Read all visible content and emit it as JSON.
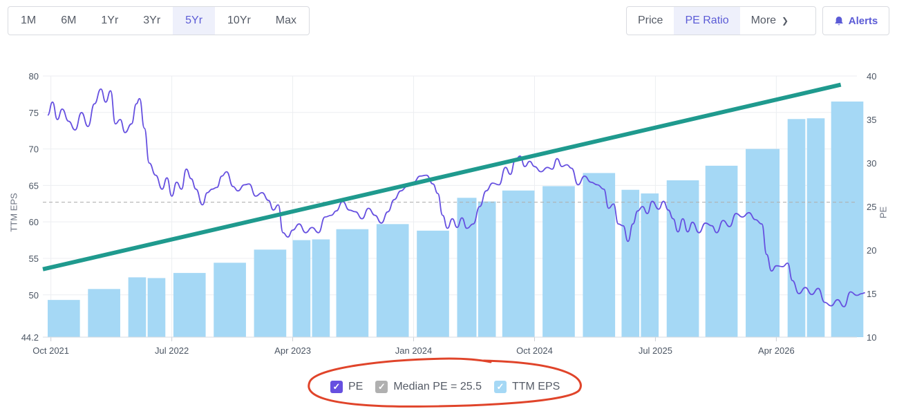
{
  "range_buttons": [
    "1M",
    "6M",
    "1Yr",
    "3Yr",
    "5Yr",
    "10Yr",
    "Max"
  ],
  "active_range": "5Yr",
  "view_buttons": {
    "price": "Price",
    "pe_ratio": "PE Ratio",
    "more": "More"
  },
  "active_view": "PE Ratio",
  "alerts_label": "Alerts",
  "legend": {
    "pe": "PE",
    "median": "Median PE = 25.5",
    "eps": "TTM EPS"
  },
  "colors": {
    "accent": "#5b5bd6",
    "pe_line": "#6650e0",
    "eps_bar": "#a5d8f5",
    "trend_line": "#1f9a8e",
    "median_line": "#b0b0b0",
    "annotation_circle": "#e0442a"
  },
  "chart_data": {
    "type": "bar+line",
    "x_ticks": [
      "Oct 2021",
      "Jul 2022",
      "Apr 2023",
      "Jan 2024",
      "Oct 2024",
      "Jul 2025",
      "Apr 2026"
    ],
    "x_tick_years": [
      2021.75,
      2022.5,
      2023.25,
      2024.0,
      2024.75,
      2025.5,
      2026.25
    ],
    "x_range": [
      2021.7,
      2026.75
    ],
    "left_axis": {
      "label": "TTM EPS",
      "min": 44.2,
      "max": 80,
      "ticks": [
        "80",
        "75",
        "70",
        "65",
        "60",
        "55",
        "50",
        "44.2"
      ],
      "tick_values": [
        80,
        75,
        70,
        65,
        60,
        55,
        50,
        44.2
      ]
    },
    "right_axis": {
      "label": "PE",
      "min": 10,
      "max": 40,
      "ticks": [
        "40",
        "35",
        "30",
        "25",
        "20",
        "15",
        "10"
      ],
      "tick_values": [
        40,
        35,
        30,
        25,
        20,
        15,
        10
      ]
    },
    "eps_bars": [
      {
        "start": 2021.73,
        "end": 2021.93,
        "value": 49.3
      },
      {
        "start": 2021.98,
        "end": 2022.18,
        "value": 50.8
      },
      {
        "start": 2022.23,
        "end": 2022.34,
        "value": 52.4
      },
      {
        "start": 2022.35,
        "end": 2022.46,
        "value": 52.3
      },
      {
        "start": 2022.51,
        "end": 2022.71,
        "value": 53.0
      },
      {
        "start": 2022.76,
        "end": 2022.96,
        "value": 54.4
      },
      {
        "start": 2023.01,
        "end": 2023.21,
        "value": 56.2
      },
      {
        "start": 2023.25,
        "end": 2023.36,
        "value": 57.5
      },
      {
        "start": 2023.37,
        "end": 2023.48,
        "value": 57.6
      },
      {
        "start": 2023.52,
        "end": 2023.72,
        "value": 59.0
      },
      {
        "start": 2023.77,
        "end": 2023.97,
        "value": 59.7
      },
      {
        "start": 2024.02,
        "end": 2024.22,
        "value": 58.8
      },
      {
        "start": 2024.27,
        "end": 2024.39,
        "value": 63.3
      },
      {
        "start": 2024.4,
        "end": 2024.51,
        "value": 62.8
      },
      {
        "start": 2024.55,
        "end": 2024.75,
        "value": 64.3
      },
      {
        "start": 2024.8,
        "end": 2025.0,
        "value": 64.9
      },
      {
        "start": 2025.05,
        "end": 2025.25,
        "value": 66.7
      },
      {
        "start": 2025.29,
        "end": 2025.4,
        "value": 64.4
      },
      {
        "start": 2025.41,
        "end": 2025.52,
        "value": 63.9
      },
      {
        "start": 2025.57,
        "end": 2025.77,
        "value": 65.7
      },
      {
        "start": 2025.81,
        "end": 2026.01,
        "value": 67.7
      },
      {
        "start": 2026.06,
        "end": 2026.27,
        "value": 70.0
      },
      {
        "start": 2026.32,
        "end": 2026.43,
        "value": 74.1
      },
      {
        "start": 2026.44,
        "end": 2026.55,
        "value": 74.2
      },
      {
        "start": 2026.59,
        "end": 2026.79,
        "value": 76.5
      }
    ],
    "pe_series": {
      "name": "PE",
      "points": [
        [
          2021.73,
          35.5
        ],
        [
          2021.76,
          37.0
        ],
        [
          2021.79,
          35.0
        ],
        [
          2021.82,
          36.2
        ],
        [
          2021.86,
          34.8
        ],
        [
          2021.9,
          33.8
        ],
        [
          2021.94,
          35.8
        ],
        [
          2021.98,
          34.2
        ],
        [
          2022.02,
          36.8
        ],
        [
          2022.06,
          38.5
        ],
        [
          2022.09,
          37.0
        ],
        [
          2022.12,
          38.3
        ],
        [
          2022.15,
          34.5
        ],
        [
          2022.18,
          35.0
        ],
        [
          2022.21,
          33.5
        ],
        [
          2022.25,
          34.5
        ],
        [
          2022.28,
          36.8
        ],
        [
          2022.3,
          37.4
        ],
        [
          2022.33,
          34.0
        ],
        [
          2022.36,
          30.0
        ],
        [
          2022.4,
          28.6
        ],
        [
          2022.44,
          27.0
        ],
        [
          2022.47,
          28.3
        ],
        [
          2022.5,
          26.2
        ],
        [
          2022.53,
          27.8
        ],
        [
          2022.56,
          27.0
        ],
        [
          2022.59,
          29.3
        ],
        [
          2022.62,
          28.2
        ],
        [
          2022.65,
          27.0
        ],
        [
          2022.69,
          25.2
        ],
        [
          2022.72,
          26.6
        ],
        [
          2022.75,
          27.0
        ],
        [
          2022.78,
          27.2
        ],
        [
          2022.81,
          28.5
        ],
        [
          2022.84,
          29.0
        ],
        [
          2022.88,
          27.3
        ],
        [
          2022.91,
          26.8
        ],
        [
          2022.95,
          27.5
        ],
        [
          2022.98,
          27.6
        ],
        [
          2023.02,
          26.2
        ],
        [
          2023.06,
          26.6
        ],
        [
          2023.1,
          25.7
        ],
        [
          2023.13,
          24.6
        ],
        [
          2023.16,
          25.2
        ],
        [
          2023.19,
          22.0
        ],
        [
          2023.22,
          21.5
        ],
        [
          2023.25,
          22.3
        ],
        [
          2023.29,
          23.0
        ],
        [
          2023.33,
          22.0
        ],
        [
          2023.37,
          22.6
        ],
        [
          2023.41,
          22.0
        ],
        [
          2023.45,
          23.8
        ],
        [
          2023.49,
          24.0
        ],
        [
          2023.52,
          24.5
        ],
        [
          2023.56,
          25.6
        ],
        [
          2023.6,
          24.6
        ],
        [
          2023.64,
          24.4
        ],
        [
          2023.68,
          23.6
        ],
        [
          2023.72,
          24.8
        ],
        [
          2023.76,
          24.0
        ],
        [
          2023.8,
          23.1
        ],
        [
          2023.84,
          24.4
        ],
        [
          2023.88,
          25.8
        ],
        [
          2023.92,
          26.8
        ],
        [
          2023.96,
          27.3
        ],
        [
          2024.0,
          27.8
        ],
        [
          2024.04,
          28.5
        ],
        [
          2024.08,
          28.6
        ],
        [
          2024.12,
          27.6
        ],
        [
          2024.15,
          26.5
        ],
        [
          2024.18,
          24.0
        ],
        [
          2024.21,
          22.5
        ],
        [
          2024.24,
          23.6
        ],
        [
          2024.27,
          22.6
        ],
        [
          2024.3,
          23.7
        ],
        [
          2024.33,
          22.5
        ],
        [
          2024.37,
          23.0
        ],
        [
          2024.41,
          25.0
        ],
        [
          2024.45,
          26.8
        ],
        [
          2024.49,
          27.7
        ],
        [
          2024.53,
          27.5
        ],
        [
          2024.57,
          29.5
        ],
        [
          2024.6,
          28.7
        ],
        [
          2024.63,
          30.3
        ],
        [
          2024.66,
          30.8
        ],
        [
          2024.69,
          29.6
        ],
        [
          2024.72,
          30.2
        ],
        [
          2024.75,
          29.6
        ],
        [
          2024.79,
          29.0
        ],
        [
          2024.83,
          29.5
        ],
        [
          2024.86,
          29.3
        ],
        [
          2024.89,
          30.5
        ],
        [
          2024.92,
          29.6
        ],
        [
          2024.95,
          29.8
        ],
        [
          2024.98,
          29.4
        ],
        [
          2025.02,
          27.5
        ],
        [
          2025.06,
          28.5
        ],
        [
          2025.1,
          27.8
        ],
        [
          2025.14,
          27.5
        ],
        [
          2025.18,
          27.0
        ],
        [
          2025.21,
          24.8
        ],
        [
          2025.24,
          25.3
        ],
        [
          2025.27,
          23.0
        ],
        [
          2025.3,
          22.8
        ],
        [
          2025.33,
          21.0
        ],
        [
          2025.36,
          23.0
        ],
        [
          2025.39,
          24.5
        ],
        [
          2025.42,
          25.0
        ],
        [
          2025.45,
          24.2
        ],
        [
          2025.48,
          25.6
        ],
        [
          2025.52,
          24.7
        ],
        [
          2025.55,
          25.6
        ],
        [
          2025.58,
          24.6
        ],
        [
          2025.61,
          23.6
        ],
        [
          2025.64,
          22.1
        ],
        [
          2025.67,
          23.6
        ],
        [
          2025.7,
          22.1
        ],
        [
          2025.73,
          23.2
        ],
        [
          2025.77,
          22.0
        ],
        [
          2025.81,
          23.1
        ],
        [
          2025.85,
          22.8
        ],
        [
          2025.88,
          22.0
        ],
        [
          2025.92,
          23.4
        ],
        [
          2025.96,
          22.7
        ],
        [
          2026.0,
          24.2
        ],
        [
          2026.04,
          23.8
        ],
        [
          2026.08,
          24.3
        ],
        [
          2026.12,
          23.5
        ],
        [
          2026.16,
          23.0
        ],
        [
          2026.19,
          19.5
        ],
        [
          2026.22,
          17.6
        ],
        [
          2026.25,
          18.2
        ],
        [
          2026.29,
          18.1
        ],
        [
          2026.32,
          18.5
        ],
        [
          2026.35,
          16.5
        ],
        [
          2026.39,
          15.0
        ],
        [
          2026.43,
          15.7
        ],
        [
          2026.47,
          14.9
        ],
        [
          2026.51,
          15.6
        ],
        [
          2026.55,
          14.0
        ],
        [
          2026.59,
          13.6
        ],
        [
          2026.63,
          14.3
        ],
        [
          2026.67,
          13.5
        ],
        [
          2026.71,
          15.2
        ],
        [
          2026.75,
          14.8
        ],
        [
          2026.78,
          15.0
        ],
        [
          2026.8,
          15.1
        ]
      ]
    },
    "median_pe": 25.5,
    "trend_line": {
      "start": [
        2021.7,
        17.8
      ],
      "end": [
        2026.65,
        39.0
      ]
    }
  }
}
